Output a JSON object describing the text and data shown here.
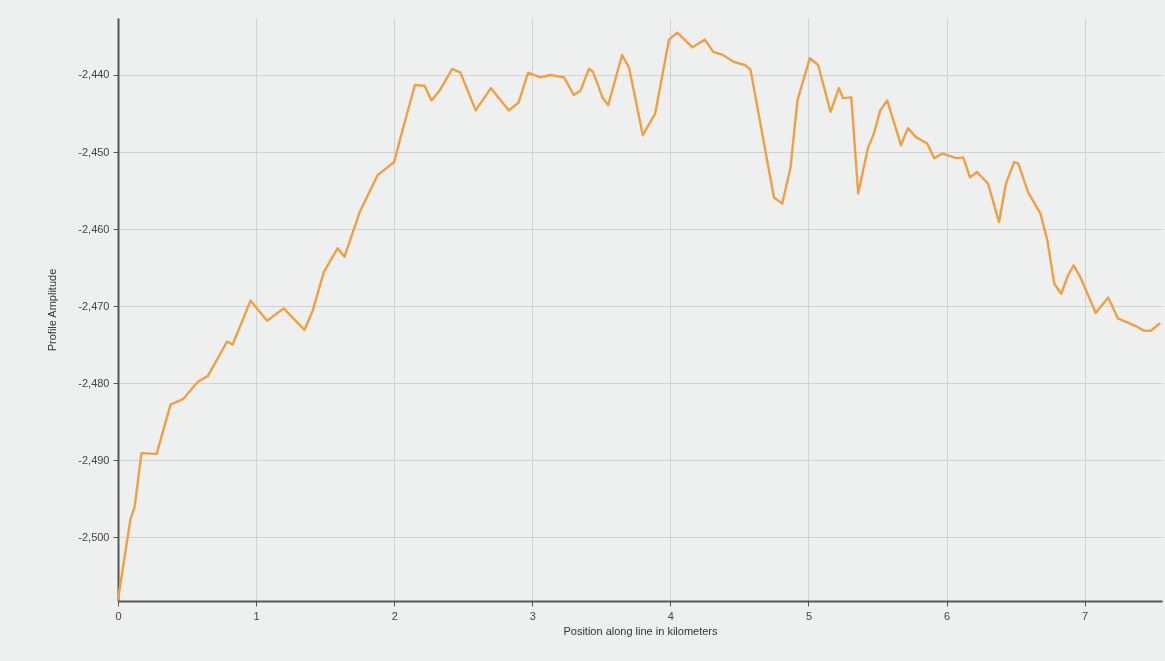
{
  "chart_data": {
    "type": "line",
    "xlabel": "Position along line in kilometers",
    "ylabel": "Profile Amplitude",
    "xlim": [
      0,
      7.56
    ],
    "xticks": [
      0,
      1,
      2,
      3,
      4,
      5,
      6,
      7
    ],
    "ylim": [
      -2508.3,
      -2432.6
    ],
    "yticks": [
      {
        "value": -2500,
        "label": "-2,500"
      },
      {
        "value": -2490,
        "label": "-2,490"
      },
      {
        "value": -2480,
        "label": "-2,480"
      },
      {
        "value": -2470,
        "label": "-2,470"
      },
      {
        "value": -2460,
        "label": "-2,460"
      },
      {
        "value": -2450,
        "label": "-2,450"
      },
      {
        "value": -2440,
        "label": "-2,440"
      }
    ],
    "grid": true,
    "line_style": "solid",
    "x": [
      0,
      0.09,
      0.12,
      0.17,
      0.28,
      0.38,
      0.47,
      0.58,
      0.65,
      0.79,
      0.83,
      0.96,
      1.08,
      1.2,
      1.35,
      1.41,
      1.49,
      1.59,
      1.64,
      1.75,
      1.88,
      2.0,
      2.04,
      2.15,
      2.22,
      2.27,
      2.33,
      2.42,
      2.48,
      2.59,
      2.7,
      2.83,
      2.9,
      2.97,
      3.06,
      3.13,
      3.23,
      3.3,
      3.35,
      3.41,
      3.44,
      3.51,
      3.55,
      3.65,
      3.7,
      3.8,
      3.89,
      3.99,
      4.05,
      4.16,
      4.25,
      4.31,
      4.38,
      4.46,
      4.54,
      4.58,
      4.75,
      4.81,
      4.87,
      4.92,
      5.01,
      5.07,
      5.16,
      5.22,
      5.25,
      5.31,
      5.36,
      5.43,
      5.47,
      5.52,
      5.57,
      5.67,
      5.72,
      5.78,
      5.86,
      5.91,
      5.97,
      6.07,
      6.12,
      6.17,
      6.22,
      6.3,
      6.38,
      6.43,
      6.49,
      6.52,
      6.59,
      6.68,
      6.73,
      6.78,
      6.83,
      6.88,
      6.92,
      6.97,
      7.08,
      7.17,
      7.24,
      7.37,
      7.43,
      7.48,
      7.54
    ],
    "series": [
      {
        "color": "#f0a042",
        "values": [
          -2508.1,
          -2497.7,
          -2496.1,
          -2489.1,
          -2489.2,
          -2482.8,
          -2482.1,
          -2479.8,
          -2479.1,
          -2474.6,
          -2475.0,
          -2469.3,
          -2471.9,
          -2470.3,
          -2473.1,
          -2470.6,
          -2465.6,
          -2462.5,
          -2463.6,
          -2457.8,
          -2453.0,
          -2451.3,
          -2448.5,
          -2441.3,
          -2441.4,
          -2443.3,
          -2442.0,
          -2439.2,
          -2439.7,
          -2444.6,
          -2441.7,
          -2444.6,
          -2443.6,
          -2439.7,
          -2440.3,
          -2440.0,
          -2440.3,
          -2442.6,
          -2442.0,
          -2439.2,
          -2439.6,
          -2443.0,
          -2443.9,
          -2437.4,
          -2439.0,
          -2447.8,
          -2445.0,
          -2435.4,
          -2434.5,
          -2436.4,
          -2435.4,
          -2437.0,
          -2437.4,
          -2438.3,
          -2438.7,
          -2439.3,
          -2455.9,
          -2456.7,
          -2452.0,
          -2443.3,
          -2437.8,
          -2438.7,
          -2444.8,
          -2441.7,
          -2443.0,
          -2442.9,
          -2455.4,
          -2449.5,
          -2447.8,
          -2444.6,
          -2443.3,
          -2449.1,
          -2446.9,
          -2448.1,
          -2448.9,
          -2450.8,
          -2450.2,
          -2450.8,
          -2450.7,
          -2453.3,
          -2452.6,
          -2454.1,
          -2459.1,
          -2454.1,
          -2451.3,
          -2451.5,
          -2455.2,
          -2458.0,
          -2461.5,
          -2467.1,
          -2468.4,
          -2466.0,
          -2464.7,
          -2466.3,
          -2470.9,
          -2468.9,
          -2471.6,
          -2472.6,
          -2473.2,
          -2473.2,
          -2472.3
        ]
      }
    ]
  }
}
